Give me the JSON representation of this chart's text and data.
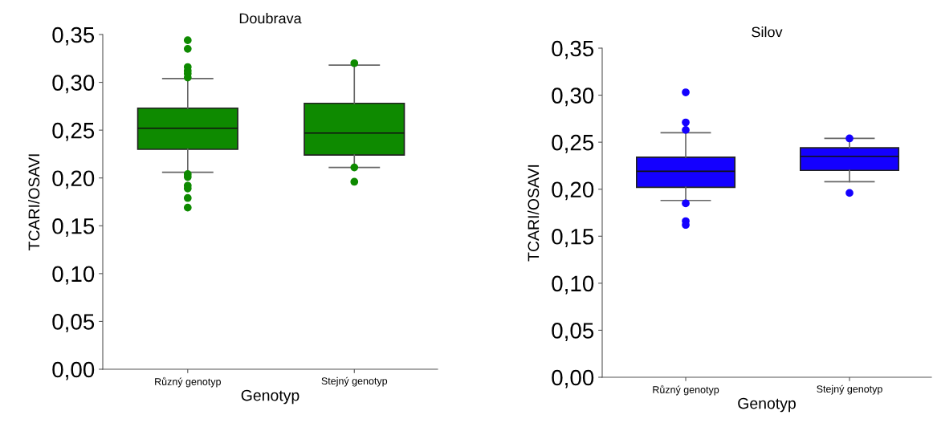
{
  "chart_data": [
    {
      "type": "box",
      "title": "Doubrava",
      "xlabel": "Genotyp",
      "ylabel": "TCARI/OSAVI",
      "categories": [
        "Různý genotyp",
        "Stejný genotyp"
      ],
      "ylim": [
        0,
        0.35
      ],
      "yticks": [
        {
          "value": 0,
          "label": "0,00"
        },
        {
          "value": 0.05,
          "label": "0,05"
        },
        {
          "value": 0.1,
          "label": "0,10"
        },
        {
          "value": 0.15,
          "label": "0,15"
        },
        {
          "value": 0.2,
          "label": "0,20"
        },
        {
          "value": 0.25,
          "label": "0,25"
        },
        {
          "value": 0.3,
          "label": "0,30"
        },
        {
          "value": 0.35,
          "label": "0,35"
        }
      ],
      "grid": false,
      "marker": "circle",
      "series": [
        {
          "color": "#0e8a00",
          "boxes": [
            {
              "low": 0.206,
              "q1": 0.23,
              "median": 0.252,
              "q3": 0.273,
              "high": 0.304,
              "outliers": [
                0.344,
                0.335,
                0.316,
                0.312,
                0.309,
                0.305,
                0.204,
                0.201,
                0.192,
                0.189,
                0.179,
                0.169
              ]
            },
            {
              "low": 0.211,
              "q1": 0.224,
              "median": 0.247,
              "q3": 0.278,
              "high": 0.318,
              "outliers": [
                0.32,
                0.211,
                0.196
              ]
            }
          ]
        }
      ]
    },
    {
      "type": "box",
      "title": "Silov",
      "xlabel": "Genotyp",
      "ylabel": "TCARI/OSAVI",
      "categories": [
        "Různý genotyp",
        "Stejný genotyp"
      ],
      "ylim": [
        0,
        0.35
      ],
      "yticks": [
        {
          "value": 0,
          "label": "0,00"
        },
        {
          "value": 0.05,
          "label": "0,05"
        },
        {
          "value": 0.1,
          "label": "0,10"
        },
        {
          "value": 0.15,
          "label": "0,15"
        },
        {
          "value": 0.2,
          "label": "0,20"
        },
        {
          "value": 0.25,
          "label": "0,25"
        },
        {
          "value": 0.3,
          "label": "0,30"
        },
        {
          "value": 0.35,
          "label": "0,35"
        }
      ],
      "grid": false,
      "marker": "circle",
      "series": [
        {
          "color": "#1400ff",
          "boxes": [
            {
              "low": 0.188,
              "q1": 0.202,
              "median": 0.219,
              "q3": 0.234,
              "high": 0.26,
              "outliers": [
                0.303,
                0.271,
                0.263,
                0.185,
                0.166,
                0.162
              ]
            },
            {
              "low": 0.208,
              "q1": 0.22,
              "median": 0.235,
              "q3": 0.244,
              "high": 0.254,
              "outliers": [
                0.254,
                0.196
              ]
            }
          ]
        }
      ]
    }
  ]
}
